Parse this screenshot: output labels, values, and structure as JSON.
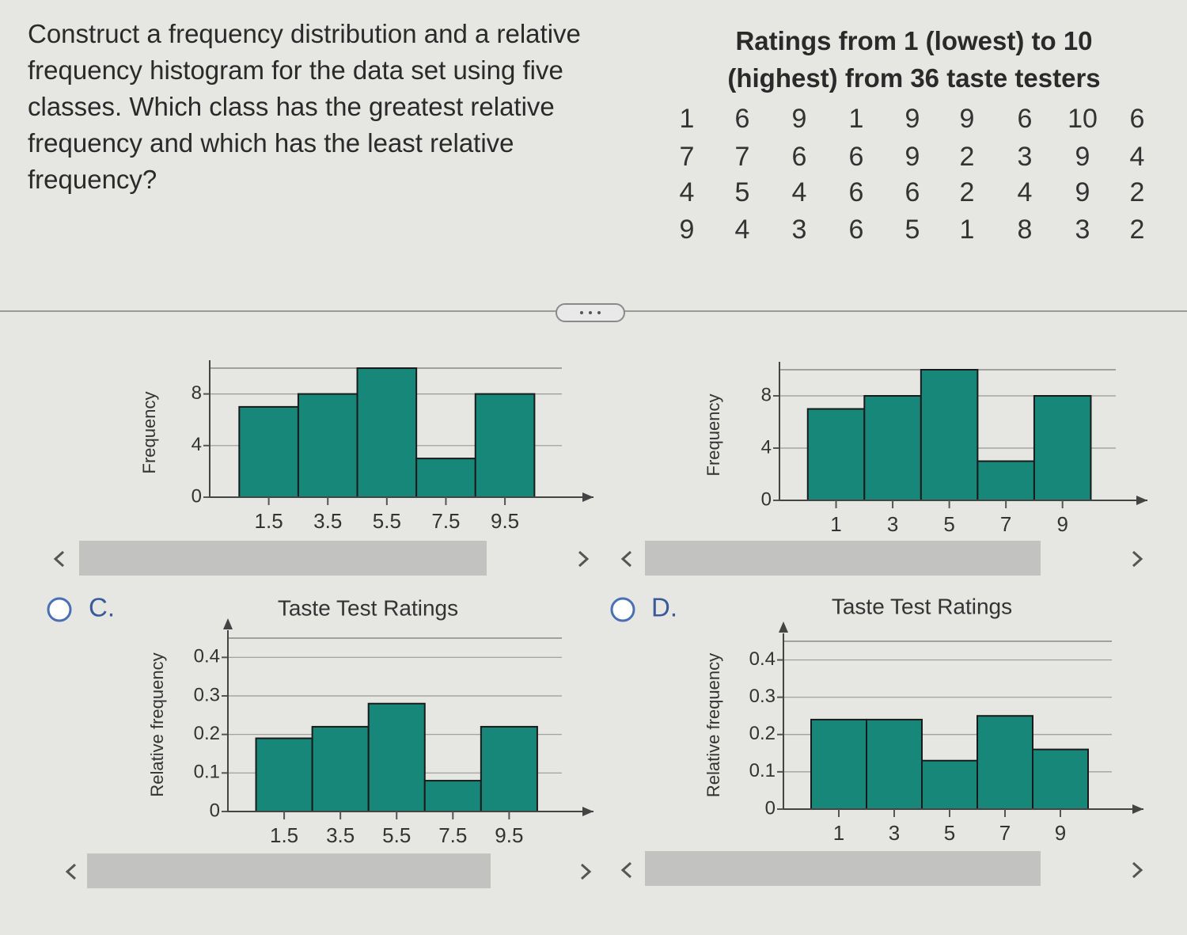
{
  "question": "Construct a frequency distribution and a relative frequency histogram for the data set using five classes. Which class has the greatest relative frequency and which has the least relative frequency?",
  "table": {
    "title": "Ratings from 1 (lowest) to 10 (highest) from 36 taste testers",
    "rows": [
      [
        1,
        6,
        9,
        1,
        9,
        9,
        6,
        10,
        6
      ],
      [
        7,
        7,
        6,
        6,
        9,
        2,
        3,
        9,
        4
      ],
      [
        4,
        5,
        4,
        6,
        6,
        2,
        4,
        9,
        2
      ],
      [
        9,
        4,
        3,
        6,
        5,
        1,
        8,
        3,
        2
      ]
    ]
  },
  "options": [
    "C.",
    "D."
  ],
  "chart_data": [
    {
      "type": "histogram",
      "ylabel": "Frequency",
      "bins": [
        0.5,
        2.5,
        4.5,
        6.5,
        8.5,
        10.5
      ],
      "values": [
        7,
        8,
        10,
        3,
        8
      ],
      "xlim": [
        -0.5,
        12.5
      ],
      "xticks": [
        1.5,
        3.5,
        5.5,
        7.5,
        9.5
      ],
      "ylim": [
        0,
        10
      ],
      "yticks": [
        0,
        4,
        8
      ],
      "color": "#17877a",
      "grid": true
    },
    {
      "type": "histogram",
      "ylabel": "Frequency",
      "bins": [
        0,
        2,
        4,
        6,
        8,
        10
      ],
      "values": [
        7,
        8,
        10,
        3,
        8
      ],
      "xlim": [
        -1,
        12
      ],
      "xticks": [
        1,
        3,
        5,
        7,
        9
      ],
      "ylim": [
        0,
        10
      ],
      "yticks": [
        0,
        4,
        8
      ],
      "color": "#17877a",
      "grid": true
    },
    {
      "type": "histogram",
      "title": "Taste Test Ratings",
      "ylabel": "Relative frequency",
      "bins": [
        0.5,
        2.5,
        4.5,
        6.5,
        8.5,
        10.5
      ],
      "values": [
        0.19,
        0.22,
        0.28,
        0.08,
        0.22
      ],
      "xlim": [
        -0.5,
        12.5
      ],
      "xticks": [
        1.5,
        3.5,
        5.5,
        7.5,
        9.5
      ],
      "ylim": [
        0,
        0.45
      ],
      "yticks": [
        0,
        0.1,
        0.2,
        0.3,
        0.4
      ],
      "color": "#17877a",
      "grid": true
    },
    {
      "type": "histogram",
      "title": "Taste Test Ratings",
      "ylabel": "Relative frequency",
      "bins": [
        0,
        2,
        4,
        6,
        8,
        10
      ],
      "values": [
        0.24,
        0.24,
        0.13,
        0.25,
        0.16
      ],
      "xlim": [
        -1,
        12
      ],
      "xticks": [
        1,
        3,
        5,
        7,
        9
      ],
      "ylim": [
        0,
        0.45
      ],
      "yticks": [
        0,
        0.1,
        0.2,
        0.3,
        0.4
      ],
      "color": "#17877a",
      "grid": true
    }
  ]
}
